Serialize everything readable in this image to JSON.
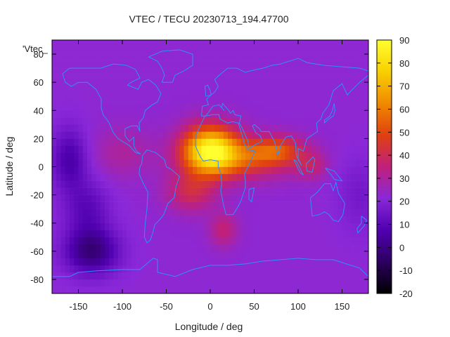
{
  "chart_data": {
    "type": "heatmap",
    "title": "VTEC / TECU 20230713_194.47700",
    "xlabel": "Longitude / deg",
    "ylabel": "Latitude / deg",
    "legend_key": "'Vtec_",
    "xlim": [
      -180,
      180
    ],
    "ylim": [
      -90,
      90
    ],
    "xticks": [
      -150,
      -100,
      -50,
      0,
      50,
      100,
      150
    ],
    "yticks": [
      -80,
      -60,
      -40,
      -20,
      0,
      20,
      40,
      60,
      80
    ],
    "colorbar": {
      "range": [
        -20,
        90
      ],
      "ticks": [
        -20,
        -10,
        0,
        10,
        20,
        30,
        40,
        50,
        60,
        70,
        80,
        90
      ]
    },
    "grid": false,
    "overlay": "coastlines",
    "features": [
      {
        "name": "equatorial anomaly peak",
        "lon": 0,
        "lat": 12,
        "value": 85
      },
      {
        "name": "indian ocean crest",
        "lon": 70,
        "lat": 12,
        "value": 50
      },
      {
        "name": "south atlantic crest",
        "lon": -20,
        "lat": -18,
        "value": 45
      },
      {
        "name": "southern africa tongue",
        "lon": 15,
        "lat": -45,
        "value": 40
      },
      {
        "name": "south pacific minimum",
        "lon": -135,
        "lat": -60,
        "value": -5
      },
      {
        "name": "central pacific minimum",
        "lon": -160,
        "lat": 5,
        "value": 5
      }
    ]
  },
  "colors": {
    "palette": [
      "#000000",
      "#2c0060",
      "#5000b0",
      "#8a28d8",
      "#c0207a",
      "#e04010",
      "#f08a00",
      "#f8d000",
      "#ffff30"
    ],
    "coastline": "#2f8fff"
  }
}
